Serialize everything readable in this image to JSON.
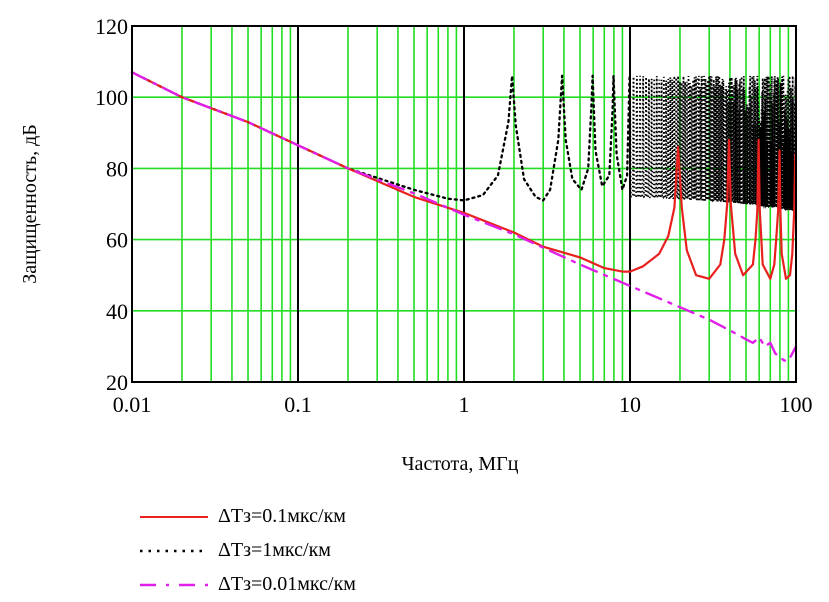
{
  "chart_data": {
    "type": "line",
    "title": "",
    "xlabel": "Частота, МГц",
    "ylabel": "Защищенность, дБ",
    "xscale": "log",
    "xlim": [
      0.01,
      100
    ],
    "ylim": [
      20,
      120
    ],
    "xticks": [
      0.01,
      0.1,
      1,
      10,
      100
    ],
    "xtick_labels": [
      "0.01",
      "0.1",
      "1",
      "10",
      "100"
    ],
    "yticks": [
      20,
      40,
      60,
      80,
      100,
      120
    ],
    "ytick_labels": [
      "20",
      "40",
      "60",
      "80",
      "100",
      "120"
    ],
    "grid": true,
    "legend_position": "bottom",
    "colors": {
      "grid_minor": "#22dd22",
      "grid_major": "#000000",
      "series_0": "#e8201e",
      "series_1": "#000000",
      "series_2": "#e020e8"
    },
    "series": [
      {
        "name": "ΔTз=0.1мкс/км",
        "style": "solid",
        "x": [
          0.01,
          0.02,
          0.05,
          0.1,
          0.2,
          0.5,
          1,
          2,
          3,
          5,
          7,
          9,
          10,
          12,
          15,
          17,
          18.5,
          19.5,
          20.5,
          22,
          25,
          30,
          35,
          37,
          38.5,
          39.5,
          40.5,
          43,
          48,
          55,
          57,
          58.5,
          59.5,
          60.5,
          63,
          70,
          74,
          76,
          78,
          79.5,
          80.5,
          82,
          87,
          92,
          95,
          97.5,
          99,
          100
        ],
        "y": [
          107,
          100,
          93,
          86.5,
          80,
          72,
          67.5,
          62,
          58,
          55,
          52,
          51,
          51,
          52.5,
          56,
          61,
          69,
          86,
          69,
          57,
          50,
          49,
          53,
          60,
          70,
          88,
          70,
          56,
          50,
          53,
          60,
          68,
          88,
          68,
          53,
          49,
          53,
          60,
          68,
          85,
          68,
          56,
          49,
          50,
          56,
          68,
          84,
          70
        ]
      },
      {
        "name": "ΔTз=1мкс/км",
        "style": "dotted",
        "x": [
          0.01,
          0.02,
          0.05,
          0.1,
          0.2,
          0.5,
          0.8,
          1,
          1.3,
          1.6,
          1.85,
          1.95,
          2.05,
          2.3,
          2.7,
          3,
          3.3,
          3.7,
          3.9,
          4.1,
          4.5,
          5.1,
          5.6,
          5.85,
          5.95,
          6.2,
          6.8,
          7.5,
          7.85,
          7.95,
          8.3,
          9,
          9.6,
          9.95
        ],
        "y": [
          107,
          100,
          93,
          86.5,
          80,
          74,
          71.5,
          71,
          72.5,
          78,
          93,
          106,
          92,
          77,
          72,
          71,
          74,
          88,
          106,
          88,
          77,
          74,
          80,
          97,
          106,
          85,
          75,
          78,
          96,
          106,
          84,
          74,
          78,
          106
        ],
        "dense_band": {
          "x_range": [
            10,
            100
          ],
          "y_min": 68,
          "y_max": 107,
          "upper_peak": 106,
          "lower_envelope": 72
        }
      },
      {
        "name": "ΔTз=0.01мкс/км",
        "style": "dashed",
        "x": [
          0.01,
          0.02,
          0.05,
          0.1,
          0.2,
          0.5,
          1,
          2,
          5,
          10,
          20,
          30,
          40,
          50,
          55,
          60,
          65,
          70,
          75,
          80,
          85,
          90,
          95,
          100
        ],
        "y": [
          107,
          100,
          93,
          86.5,
          80,
          73,
          67,
          61.5,
          53,
          47,
          41,
          37.5,
          34.5,
          32,
          31,
          32.5,
          30,
          31,
          28,
          27,
          26,
          26,
          28,
          30
        ]
      }
    ]
  }
}
